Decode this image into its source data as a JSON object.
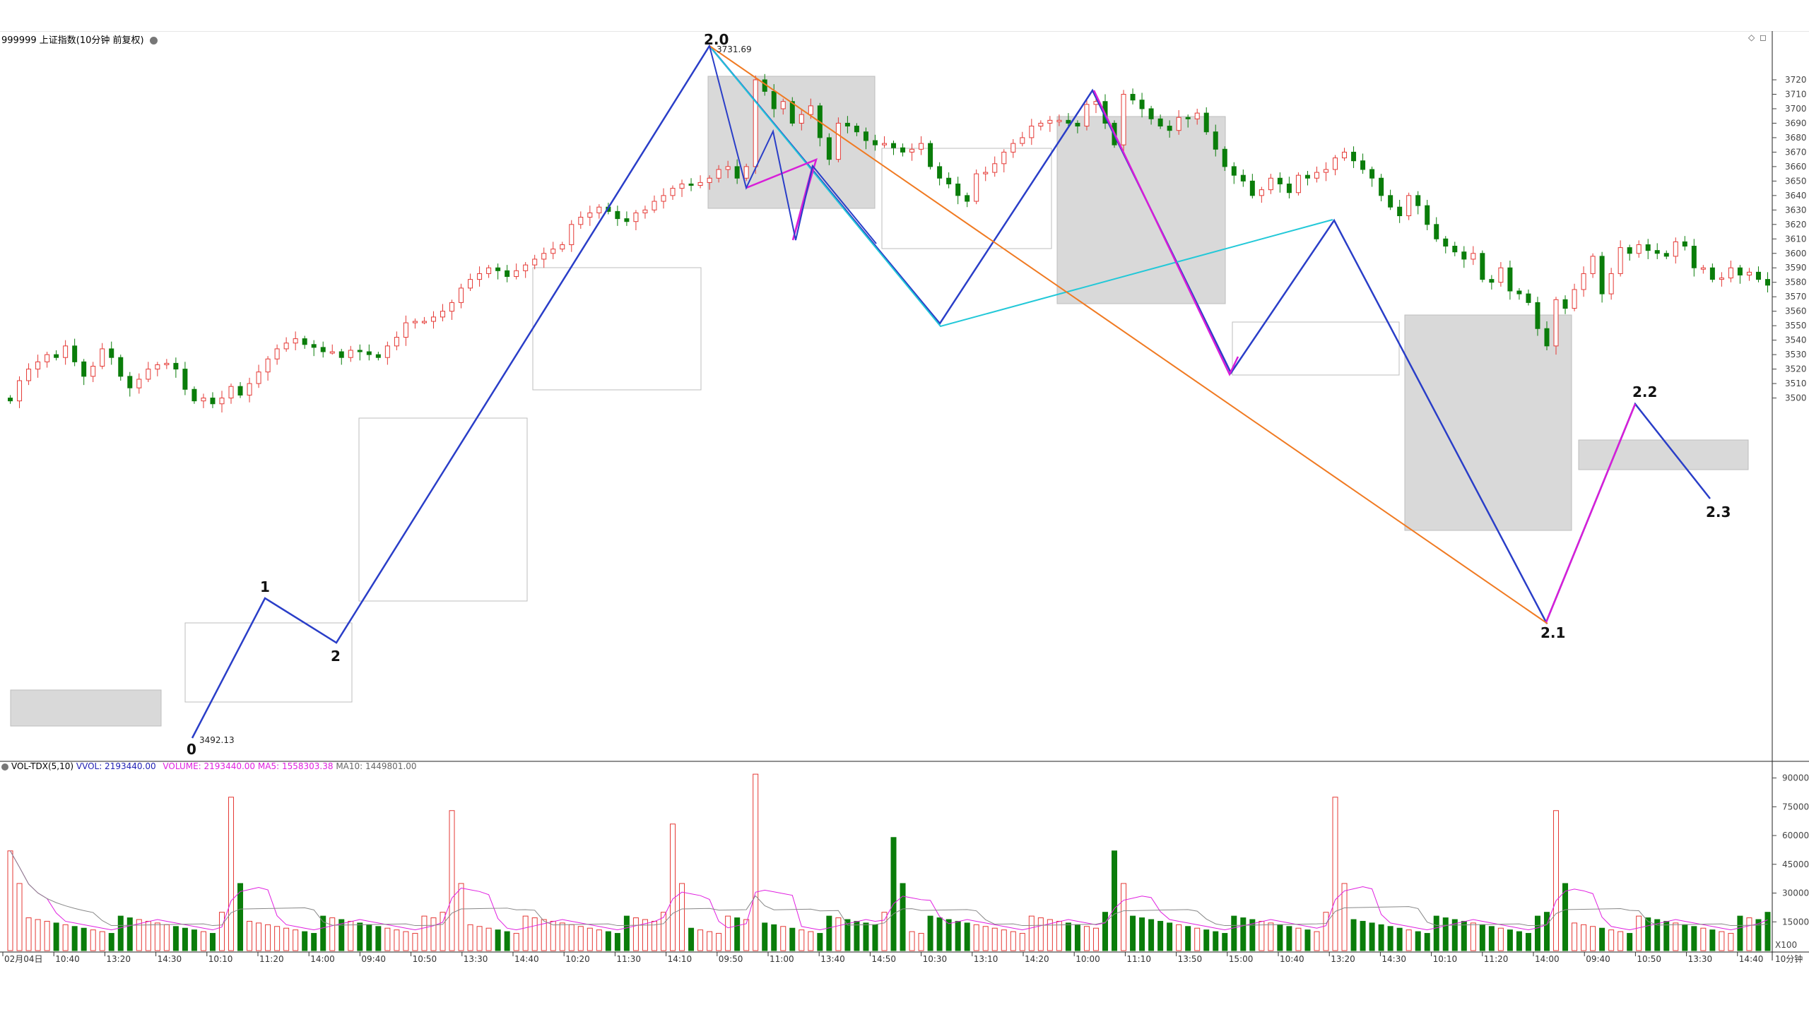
{
  "window": {
    "title": "999999 上证指数(10分钟 前复权)",
    "controls": [
      "◇",
      "◻"
    ]
  },
  "price_axis": {
    "ticks": [
      "3720",
      "3710",
      "3700",
      "3690",
      "3680",
      "3670",
      "3660",
      "3650",
      "3640",
      "3630",
      "3620",
      "3610",
      "3600",
      "3590",
      "3580",
      "3570",
      "3560",
      "3550",
      "3540",
      "3530",
      "3520",
      "3510",
      "3500"
    ]
  },
  "volume_axis": {
    "ticks": [
      "90000",
      "75000",
      "60000",
      "45000",
      "30000",
      "15000"
    ],
    "unit": "X100"
  },
  "volume_header": {
    "indicator": "VOL-TDX(5,10)",
    "vvol": "VVOL: 2193440.00",
    "volume": "VOLUME: 2193440.00",
    "ma5": "MA5: 1558303.38",
    "ma10": "MA10: 1449801.00",
    "colors": {
      "indicator": "#000000",
      "vvol": "#1f1fb4",
      "volume": "#e020e0",
      "ma5": "#e020e0",
      "ma10": "#666666"
    }
  },
  "time_axis": {
    "labels": [
      "02月04日",
      "10:40",
      "13:20",
      "14:30",
      "10:10",
      "11:20",
      "14:00",
      "09:40",
      "10:50",
      "13:30",
      "14:40",
      "10:20",
      "11:30",
      "14:10",
      "09:50",
      "11:00",
      "13:40",
      "14:50",
      "10:30",
      "13:10",
      "14:20",
      "10:00",
      "11:10",
      "13:50",
      "15:00",
      "10:40",
      "13:20",
      "14:30",
      "10:10",
      "11:20",
      "14:00",
      "09:40",
      "10:50",
      "13:30",
      "14:40"
    ],
    "period": "10分钟"
  },
  "annotations": {
    "wave_labels": [
      "0",
      "1",
      "2",
      "2.0",
      "2.1",
      "2.2",
      "2.3"
    ],
    "price_marks": [
      "3731.69",
      "3492.13"
    ]
  },
  "colors": {
    "up": "#e53935",
    "down": "#0a7d0a",
    "wave_main": "#2a3ec8",
    "wave_cyan": "#22c8d8",
    "wave_magenta": "#d81ed8",
    "wave_orange": "#f07a22",
    "box_fill": "#d9d9d9",
    "box_outline": "#bdbdbd"
  },
  "chart_data": {
    "type": "candlestick",
    "title": "999999 上证指数(10分钟 前复权)",
    "ylim": [
      3490,
      3736
    ],
    "close_series": [
      3498,
      3512,
      3520,
      3525,
      3530,
      3528,
      3536,
      3525,
      3515,
      3522,
      3534,
      3528,
      3515,
      3507,
      3513,
      3520,
      3523,
      3524,
      3520,
      3506,
      3498,
      3500,
      3496,
      3500,
      3508,
      3502,
      3510,
      3518,
      3527,
      3534,
      3538,
      3541,
      3537,
      3535,
      3532,
      3532,
      3528,
      3533,
      3532,
      3530,
      3528,
      3536,
      3542,
      3552,
      3553,
      3553,
      3556,
      3560,
      3566,
      3576,
      3582,
      3586,
      3590,
      3588,
      3584,
      3588,
      3592,
      3596,
      3600,
      3603,
      3606,
      3620,
      3625,
      3628,
      3632,
      3629,
      3624,
      3622,
      3628,
      3630,
      3636,
      3640,
      3645,
      3648,
      3647,
      3649,
      3652,
      3658,
      3660,
      3652,
      3660,
      3720,
      3712,
      3700,
      3705,
      3690,
      3696,
      3702,
      3680,
      3665,
      3690,
      3688,
      3684,
      3678,
      3675,
      3676,
      3673,
      3670,
      3672,
      3676,
      3660,
      3652,
      3648,
      3640,
      3636,
      3655,
      3656,
      3662,
      3670,
      3676,
      3680,
      3688,
      3690,
      3692,
      3692,
      3690,
      3688,
      3703,
      3705,
      3690,
      3675,
      3710,
      3706,
      3700,
      3693,
      3688,
      3685,
      3694,
      3693,
      3697,
      3684,
      3672,
      3660,
      3654,
      3650,
      3640,
      3644,
      3652,
      3648,
      3642,
      3654,
      3652,
      3656,
      3658,
      3666,
      3670,
      3664,
      3658,
      3652,
      3640,
      3632,
      3626,
      3640,
      3633,
      3620,
      3610,
      3605,
      3601,
      3596,
      3600,
      3582,
      3580,
      3590,
      3574,
      3572,
      3566,
      3548,
      3536,
      3568,
      3562,
      3575,
      3586,
      3598,
      3572,
      3586,
      3604,
      3600,
      3606,
      3602,
      3600,
      3598,
      3608,
      3605,
      3590,
      3590,
      3582,
      3583,
      3590,
      3585,
      3587,
      3582,
      3578
    ],
    "pivots": [
      {
        "label": "0",
        "value": 3492.13
      },
      {
        "label": "1",
        "value": 3542
      },
      {
        "label": "2",
        "value": 3526
      },
      {
        "label": "2.0",
        "value": 3731.69
      },
      {
        "label": "2.1",
        "value": 3533
      },
      {
        "label": "2.2",
        "value": 3608
      },
      {
        "label": "2.3",
        "value": 3575
      }
    ],
    "volume": {
      "ylim": [
        0,
        95000
      ],
      "ma5_label": "MA5",
      "ma10_label": "MA10",
      "max_bar": 92000
    }
  }
}
